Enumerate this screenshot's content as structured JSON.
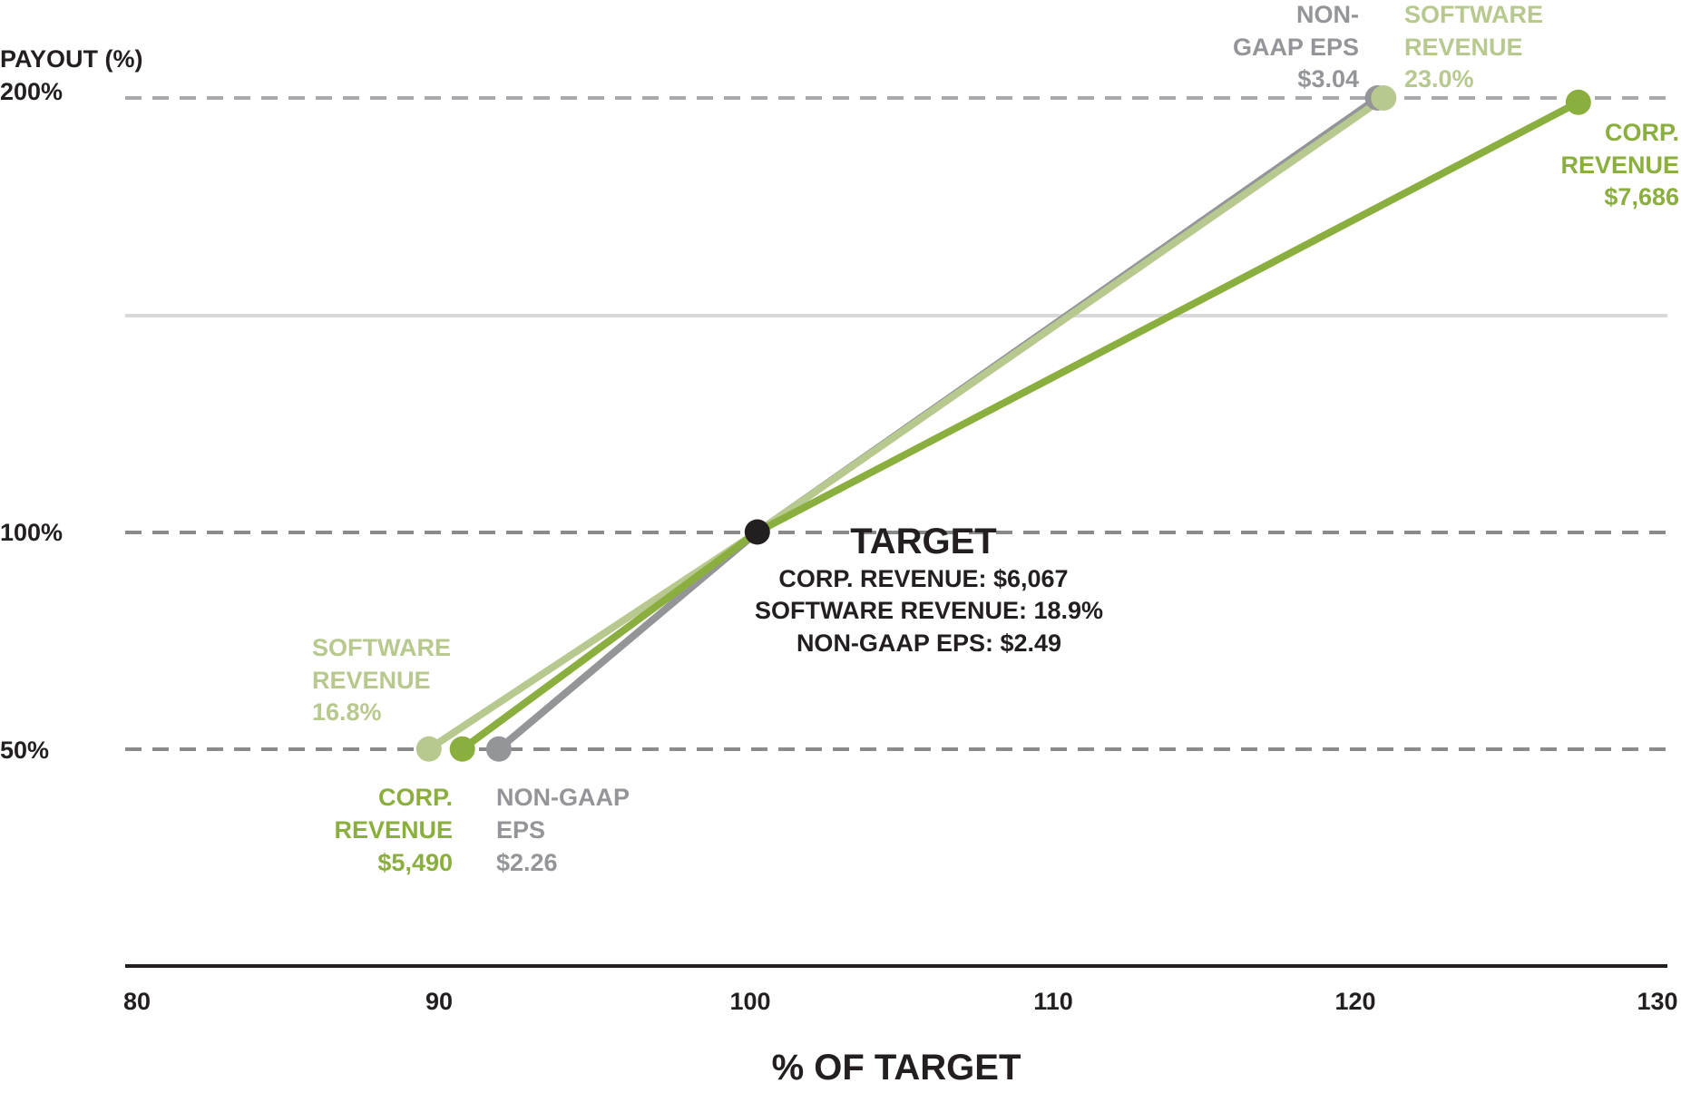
{
  "chart_data": {
    "type": "line",
    "title": "",
    "xlabel": "% OF TARGET",
    "ylabel": "PAYOUT (%)",
    "xlim": [
      80,
      130
    ],
    "ylim": [
      0,
      200
    ],
    "x_ticks": [
      "80",
      "90",
      "100",
      "110",
      "120",
      "130"
    ],
    "y_ticks": [
      {
        "value": 50,
        "label": "50%"
      },
      {
        "value": 100,
        "label": "100%"
      },
      {
        "value": 200,
        "label": "200%"
      }
    ],
    "series": [
      {
        "name": "Non-GAAP EPS",
        "color": "#939598",
        "points": [
          {
            "x": 91.9,
            "y": 50,
            "label": [
              "NON-GAAP",
              "EPS",
              "$2.26"
            ]
          },
          {
            "x": 100.4,
            "y": 100
          },
          {
            "x": 120.8,
            "y": 200,
            "label": [
              "NON-",
              "GAAP EPS",
              "$3.04"
            ]
          }
        ]
      },
      {
        "name": "Software Revenue",
        "color": "#b7c98e",
        "points": [
          {
            "x": 89.6,
            "y": 50,
            "label": [
              "SOFTWARE",
              "REVENUE",
              "16.8%"
            ]
          },
          {
            "x": 100.4,
            "y": 100
          },
          {
            "x": 121.0,
            "y": 200,
            "label": [
              "SOFTWARE",
              "REVENUE",
              "23.0%"
            ]
          }
        ]
      },
      {
        "name": "Corp. Revenue",
        "color": "#8aaf3f",
        "points": [
          {
            "x": 90.7,
            "y": 50,
            "label": [
              "CORP.",
              "REVENUE",
              "$5,490"
            ]
          },
          {
            "x": 100.4,
            "y": 100
          },
          {
            "x": 127.4,
            "y": 199,
            "label": [
              "CORP.",
              "REVENUE",
              "$7,686"
            ]
          }
        ]
      }
    ],
    "target": {
      "x": 100.4,
      "y": 100,
      "heading": "TARGET",
      "lines": [
        "CORP. REVENUE: $6,067",
        "SOFTWARE REVENUE: 18.9%",
        "NON-GAAP EPS: $2.49"
      ]
    }
  }
}
